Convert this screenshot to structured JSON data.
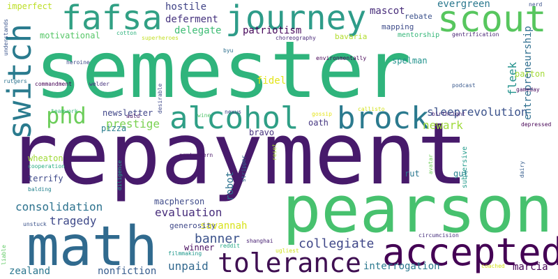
{
  "background": "#ffffff",
  "words": [
    {
      "text": "semester",
      "color": "#2fb47c"
    },
    {
      "text": "repayment",
      "color": "#471a6b"
    },
    {
      "text": "pearson",
      "color": "#47c16e"
    },
    {
      "text": "math",
      "color": "#306a8e"
    },
    {
      "text": "accepted",
      "color": "#440154"
    },
    {
      "text": "tolerance",
      "color": "#3f0f52"
    },
    {
      "text": "journey",
      "color": "#2e9c89"
    },
    {
      "text": "fafsa",
      "color": "#31a084"
    },
    {
      "text": "scout",
      "color": "#57c65e"
    },
    {
      "text": "alcohol",
      "color": "#2f9f86"
    },
    {
      "text": "brock",
      "color": "#2b7a8e"
    },
    {
      "text": "switch",
      "color": "#2a7b8e"
    },
    {
      "text": "phd",
      "color": "#6ccd5a"
    },
    {
      "text": "sleeprevolution",
      "color": "#3b528b"
    },
    {
      "text": "prestige",
      "color": "#7ad151"
    },
    {
      "text": "newark",
      "color": "#9fda3a"
    },
    {
      "text": "collegiate",
      "color": "#3f4788"
    },
    {
      "text": "banner",
      "color": "#3b528b"
    },
    {
      "text": "evaluation",
      "color": "#472d7b"
    },
    {
      "text": "consolidation",
      "color": "#2c728e"
    },
    {
      "text": "tragedy",
      "color": "#3e4989"
    },
    {
      "text": "unpaid",
      "color": "#31688e"
    },
    {
      "text": "interrogation",
      "color": "#2a788e"
    },
    {
      "text": "zealand",
      "color": "#2a768e"
    },
    {
      "text": "nonfiction",
      "color": "#365c8d"
    },
    {
      "text": "marcia",
      "color": "#440154"
    },
    {
      "text": "robot",
      "color": "#2c728e"
    },
    {
      "text": "savannah",
      "color": "#d8e219"
    },
    {
      "text": "patriotism",
      "color": "#46075a"
    },
    {
      "text": "deferment",
      "color": "#46337e"
    },
    {
      "text": "hostile",
      "color": "#414487"
    },
    {
      "text": "delegate",
      "color": "#3dbc74"
    },
    {
      "text": "mascot",
      "color": "#472c7a"
    },
    {
      "text": "evergreen",
      "color": "#2a788e"
    },
    {
      "text": "entrepreneurship",
      "color": "#2e6e8e"
    },
    {
      "text": "fleek",
      "color": "#21918c"
    },
    {
      "text": "motivational",
      "color": "#56c667"
    },
    {
      "text": "fidel",
      "color": "#e3e418"
    },
    {
      "text": "oath",
      "color": "#453781"
    },
    {
      "text": "bravo",
      "color": "#46327e"
    },
    {
      "text": "spelman",
      "color": "#20928c"
    },
    {
      "text": "parton",
      "color": "#a2da37"
    },
    {
      "text": "newsletter",
      "color": "#404688"
    },
    {
      "text": "pizza",
      "color": "#287c8e"
    },
    {
      "text": "macpherson",
      "color": "#3e4a89"
    },
    {
      "text": "generosity",
      "color": "#3f4889"
    },
    {
      "text": "winner",
      "color": "#460b5e"
    },
    {
      "text": "wheaton",
      "color": "#a0da39"
    },
    {
      "text": "terrify",
      "color": "#3e4989"
    },
    {
      "text": "imperfect",
      "color": "#bddf26"
    },
    {
      "text": "rebate",
      "color": "#3b518b"
    },
    {
      "text": "mapping",
      "color": "#3e4c8a"
    },
    {
      "text": "mentorship",
      "color": "#35b779"
    },
    {
      "text": "bavaria",
      "color": "#b2dd2d"
    },
    {
      "text": "gentrification",
      "color": "#482374"
    },
    {
      "text": "nerd",
      "color": "#3b528b"
    },
    {
      "text": "cotton",
      "color": "#2db27d"
    },
    {
      "text": "superheroes",
      "color": "#c2df23"
    },
    {
      "text": "choreography",
      "color": "#482878"
    },
    {
      "text": "byu",
      "color": "#2d708e"
    },
    {
      "text": "understands",
      "color": "#3a548c"
    },
    {
      "text": "heroine",
      "color": "#3e4a89"
    },
    {
      "text": "environmentally",
      "color": "#440154"
    },
    {
      "text": "rutgers",
      "color": "#2c728e"
    },
    {
      "text": "commandment",
      "color": "#440154"
    },
    {
      "text": "podcast",
      "color": "#38588c"
    },
    {
      "text": "gameday",
      "color": "#46085c"
    },
    {
      "text": "welder",
      "color": "#46327e"
    },
    {
      "text": "desirable",
      "color": "#3e4989"
    },
    {
      "text": "callisto",
      "color": "#d2e21b"
    },
    {
      "text": "teamwork",
      "color": "#38b977"
    },
    {
      "text": "auld",
      "color": "#471365"
    },
    {
      "text": "wine",
      "color": "#50c46a"
    },
    {
      "text": "nexus",
      "color": "#3e4989"
    },
    {
      "text": "gossip",
      "color": "#e5e419"
    },
    {
      "text": "birthright",
      "color": "#482677"
    },
    {
      "text": "depressed",
      "color": "#440154"
    },
    {
      "text": "postmodern",
      "color": "#481668"
    },
    {
      "text": "cooperation",
      "color": "#27ad81"
    },
    {
      "text": "diligence",
      "color": "#1fa188"
    },
    {
      "text": "stripper",
      "color": "#31688e"
    },
    {
      "text": "reset",
      "color": "#a8db34"
    },
    {
      "text": "avatar",
      "color": "#6ece58"
    },
    {
      "text": "subversive",
      "color": "#1f9a8a"
    },
    {
      "text": "rut",
      "color": "#2a768e"
    },
    {
      "text": "gut",
      "color": "#27808e"
    },
    {
      "text": "dairy",
      "color": "#365d8d"
    },
    {
      "text": "balding",
      "color": "#25838e"
    },
    {
      "text": "unstuck",
      "color": "#3b528b"
    },
    {
      "text": "liable",
      "color": "#5ec962"
    },
    {
      "text": "reddit",
      "color": "#22a785"
    },
    {
      "text": "shanghai",
      "color": "#482173"
    },
    {
      "text": "ugliest",
      "color": "#d0e11c"
    },
    {
      "text": "filmmaking",
      "color": "#1f988b"
    },
    {
      "text": "circumcision",
      "color": "#472f7d"
    },
    {
      "text": "coached",
      "color": "#d2e21b"
    }
  ]
}
